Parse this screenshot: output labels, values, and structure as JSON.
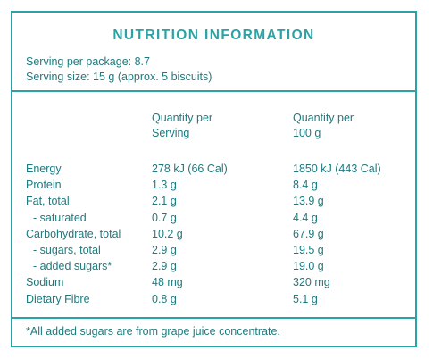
{
  "panel": {
    "title": "NUTRITION INFORMATION",
    "serving_per_package": "Serving per package: 8.7",
    "serving_size": "Serving size: 15 g (approx. 5 biscuits)",
    "headers": {
      "per_serving_line1": "Quantity per",
      "per_serving_line2": "Serving",
      "per_100g_line1": "Quantity per",
      "per_100g_line2": "100 g"
    },
    "rows": [
      {
        "label": "Energy",
        "per_serving": "278 kJ (66 Cal)",
        "per_100g": "1850 kJ (443 Cal)"
      },
      {
        "label": "Protein",
        "per_serving": "1.3 g",
        "per_100g": "8.4 g"
      },
      {
        "label": "Fat, total",
        "per_serving": "2.1 g",
        "per_100g": "13.9 g"
      },
      {
        "label": "- saturated",
        "per_serving": "0.7 g",
        "per_100g": "4.4 g"
      },
      {
        "label": "Carbohydrate, total",
        "per_serving": "10.2 g",
        "per_100g": "67.9 g"
      },
      {
        "label": "- sugars, total",
        "per_serving": "2.9 g",
        "per_100g": "19.5 g"
      },
      {
        "label": "- added sugars*",
        "per_serving": "2.9 g",
        "per_100g": "19.0 g"
      },
      {
        "label": "Sodium",
        "per_serving": "48 mg",
        "per_100g": "320 mg"
      },
      {
        "label": "Dietary Fibre",
        "per_serving": "0.8 g",
        "per_100g": "5.1 g"
      }
    ],
    "footnote": "*All added sugars are from grape juice concentrate."
  },
  "colors": {
    "accent": "#2aa3a6",
    "text": "#1e7a7e"
  }
}
